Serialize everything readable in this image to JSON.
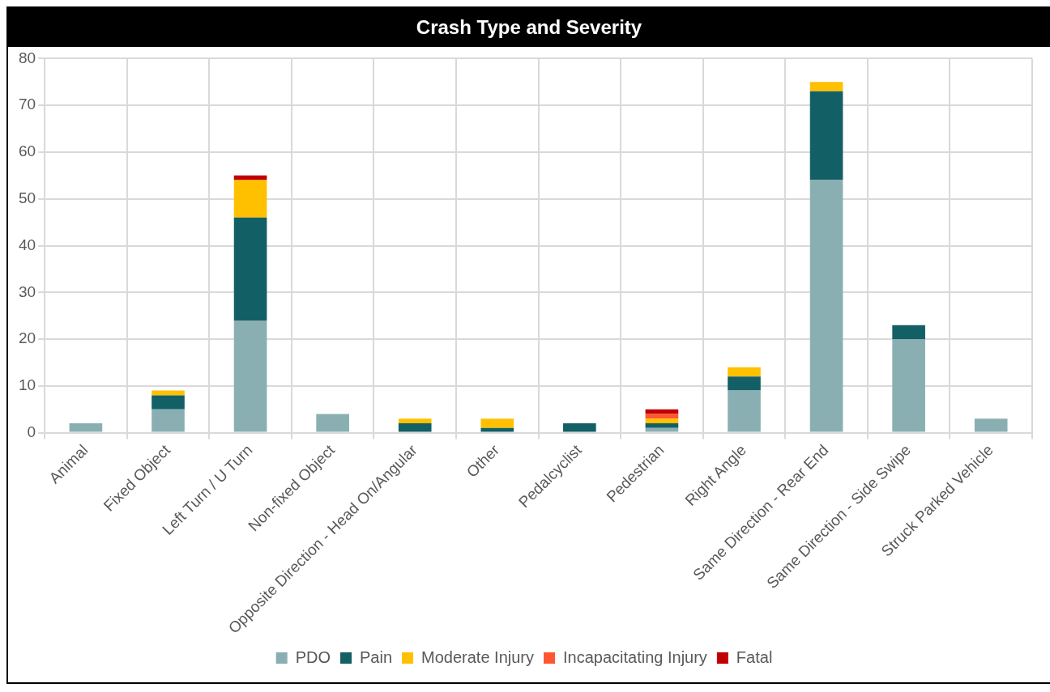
{
  "chart_data": {
    "type": "bar",
    "title": "Crash Type and Severity",
    "stacked": true,
    "grid": true,
    "legend": "bottom",
    "categories": [
      "Animal",
      "Fixed Object",
      "Left Turn / U Turn",
      "Non-fixed Object",
      "Opposite Direction - Head On/Angular",
      "Other",
      "Pedalcyclist",
      "Pedestrian",
      "Right Angle",
      "Same Direction - Rear End",
      "Same Direction - Side Swipe",
      "Struck Parked Vehicle"
    ],
    "ylim": [
      0,
      80
    ],
    "yticks": [
      0,
      10,
      20,
      30,
      40,
      50,
      60,
      70,
      80
    ],
    "series": [
      {
        "name": "PDO",
        "color": "#8aafb3",
        "values": [
          2,
          5,
          24,
          4,
          0,
          0,
          0,
          1,
          9,
          54,
          20,
          3
        ]
      },
      {
        "name": "Pain",
        "color": "#135f66",
        "values": [
          0,
          3,
          22,
          0,
          2,
          1,
          2,
          1,
          3,
          19,
          3,
          0
        ]
      },
      {
        "name": "Moderate Injury",
        "color": "#ffc000",
        "values": [
          0,
          1,
          8,
          0,
          1,
          2,
          0,
          1,
          2,
          2,
          0,
          0
        ]
      },
      {
        "name": "Incapacitating Injury",
        "color": "#ff5533",
        "values": [
          0,
          0,
          0,
          0,
          0,
          0,
          0,
          1,
          0,
          0,
          0,
          0
        ]
      },
      {
        "name": "Fatal",
        "color": "#c00000",
        "values": [
          0,
          0,
          1,
          0,
          0,
          0,
          0,
          1,
          0,
          0,
          0,
          0
        ]
      }
    ]
  }
}
